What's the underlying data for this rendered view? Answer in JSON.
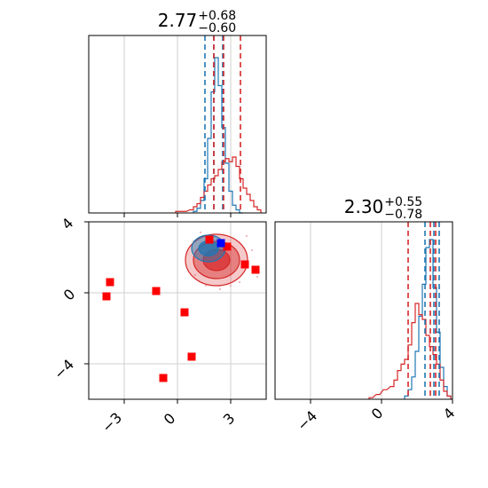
{
  "chart_data": [
    {
      "panel": "hist-param1",
      "type": "histogram",
      "title": {
        "median": "2.77",
        "plus": "+0.68",
        "minus": "−0.60"
      },
      "xlim": [
        -5,
        5
      ],
      "grid": true,
      "x_bins": [
        -0.3,
        -0.1,
        0.1,
        0.3,
        0.5,
        0.7,
        0.9,
        1.1,
        1.3,
        1.5,
        1.7,
        1.9,
        2.1,
        2.3,
        2.5,
        2.7,
        2.9,
        3.1,
        3.3,
        3.5,
        3.7,
        3.9,
        4.1,
        4.3,
        4.5
      ],
      "series": [
        {
          "color": "#1f77b4",
          "x": [
            1.0,
            1.2,
            1.4,
            1.6,
            1.8,
            2.0,
            2.2,
            2.4,
            2.6,
            2.8,
            3.0,
            3.2,
            3.4,
            3.6
          ],
          "values": [
            0.01,
            0.03,
            0.08,
            0.22,
            0.48,
            0.78,
            1.0,
            0.82,
            0.55,
            0.32,
            0.14,
            0.05,
            0.02,
            0.0
          ]
        },
        {
          "color": "#d62728",
          "x": [
            0.0,
            0.4,
            0.8,
            1.0,
            1.2,
            1.4,
            1.6,
            1.8,
            2.0,
            2.2,
            2.4,
            2.6,
            2.8,
            3.0,
            3.2,
            3.4,
            3.6,
            3.8,
            4.0,
            4.2,
            4.4,
            4.6
          ],
          "values": [
            0.01,
            0.01,
            0.02,
            0.04,
            0.06,
            0.1,
            0.14,
            0.18,
            0.22,
            0.24,
            0.28,
            0.33,
            0.35,
            0.33,
            0.36,
            0.3,
            0.22,
            0.16,
            0.12,
            0.08,
            0.04,
            0.02
          ]
        }
      ],
      "quantiles": [
        {
          "color": "#1f77b4",
          "values": [
            1.55,
            2.05,
            2.55
          ]
        },
        {
          "color": "#d62728",
          "values": [
            2.05,
            2.6,
            3.55
          ]
        }
      ]
    },
    {
      "panel": "scatter-2d",
      "type": "scatter",
      "xlim": [
        -5,
        5
      ],
      "ylim": [
        -6,
        4
      ],
      "xticks": [
        "−3",
        "0",
        "3"
      ],
      "yticks": [
        "−4",
        "0",
        "4"
      ],
      "grid": true,
      "contours": [
        {
          "color": "#d62728",
          "cx": 2.2,
          "cy": 1.85,
          "levels": [
            {
              "rx": 1.75,
              "ry": 1.45,
              "opacity": 0.25
            },
            {
              "rx": 1.3,
              "ry": 1.05,
              "opacity": 0.45
            },
            {
              "rx": 0.75,
              "ry": 0.6,
              "opacity": 0.7
            }
          ]
        },
        {
          "color": "#1f77b4",
          "cx": 1.75,
          "cy": 2.5,
          "levels": [
            {
              "rx": 0.95,
              "ry": 0.75,
              "opacity": 0.45
            },
            {
              "rx": 0.55,
              "ry": 0.42,
              "opacity": 0.75
            }
          ]
        }
      ],
      "points": [
        {
          "x": -4.0,
          "y": -0.2,
          "color": "#ff0000"
        },
        {
          "x": -3.8,
          "y": 0.6,
          "color": "#ff0000"
        },
        {
          "x": -1.2,
          "y": 0.1,
          "color": "#ff0000"
        },
        {
          "x": 0.4,
          "y": -1.1,
          "color": "#ff0000"
        },
        {
          "x": 0.8,
          "y": -3.6,
          "color": "#ff0000"
        },
        {
          "x": -0.8,
          "y": -4.8,
          "color": "#ff0000"
        },
        {
          "x": 1.8,
          "y": 3.0,
          "color": "#ff0000"
        },
        {
          "x": 2.8,
          "y": 2.6,
          "color": "#ff0000"
        },
        {
          "x": 3.8,
          "y": 1.6,
          "color": "#ff0000"
        },
        {
          "x": 4.4,
          "y": 1.3,
          "color": "#ff0000"
        },
        {
          "x": 2.45,
          "y": 2.8,
          "color": "#0000ff"
        }
      ]
    },
    {
      "panel": "hist-param2",
      "type": "histogram",
      "title": {
        "median": "2.30",
        "plus": "+0.55",
        "minus": "−0.78"
      },
      "xlim": [
        -6,
        4
      ],
      "xticks": [
        "−4",
        "0",
        "4"
      ],
      "grid": true,
      "series": [
        {
          "color": "#1f77b4",
          "x": [
            1.4,
            1.6,
            1.8,
            2.0,
            2.2,
            2.4,
            2.6,
            2.8,
            3.0,
            3.2,
            3.4,
            3.6,
            3.8
          ],
          "values": [
            0.02,
            0.06,
            0.14,
            0.3,
            0.52,
            0.72,
            0.95,
            1.0,
            0.7,
            0.42,
            0.2,
            0.08,
            0.02
          ]
        },
        {
          "color": "#d62728",
          "x": [
            -0.6,
            -0.2,
            0.2,
            0.6,
            0.8,
            1.0,
            1.2,
            1.4,
            1.6,
            1.8,
            2.0,
            2.2,
            2.4,
            2.6,
            2.8,
            3.0,
            3.2,
            3.4,
            3.6,
            3.8
          ],
          "values": [
            0.01,
            0.03,
            0.06,
            0.08,
            0.12,
            0.18,
            0.22,
            0.25,
            0.34,
            0.48,
            0.6,
            0.53,
            0.5,
            0.4,
            0.33,
            0.28,
            0.22,
            0.12,
            0.05,
            0.02
          ]
        }
      ],
      "quantiles": [
        {
          "color": "#d62728",
          "values": [
            1.5,
            2.75,
            3.05
          ]
        },
        {
          "color": "#1f77b4",
          "values": [
            2.45,
            2.95,
            3.25
          ]
        }
      ]
    }
  ]
}
